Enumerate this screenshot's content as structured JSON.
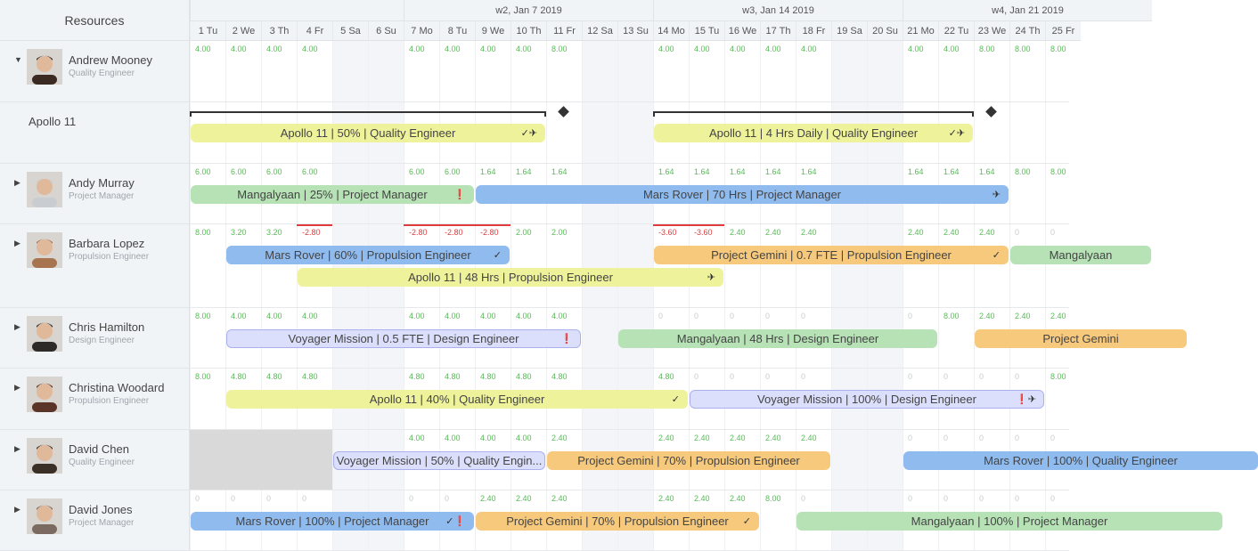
{
  "header": {
    "resources_label": "Resources",
    "weeks": [
      {
        "label": "w2, Jan 7 2019",
        "start": 6
      },
      {
        "label": "w3, Jan 14 2019",
        "start": 13
      },
      {
        "label": "w4, Jan 21 2019",
        "start": 20
      }
    ],
    "days": [
      "1 Tu",
      "2 We",
      "3 Th",
      "4 Fr",
      "5 Sa",
      "6 Su",
      "7 Mo",
      "8 Tu",
      "9 We",
      "10 Th",
      "11 Fr",
      "12 Sa",
      "13 Su",
      "14 Mo",
      "15 Tu",
      "16 We",
      "17 Th",
      "18 Fr",
      "19 Sa",
      "20 Su",
      "21 Mo",
      "22 Tu",
      "23 We",
      "24 Th",
      "25 Fr"
    ],
    "weekend_cols": [
      4,
      5,
      11,
      12,
      18,
      19
    ]
  },
  "colors": {
    "green": "#b6e2b6",
    "blue": "#8fbbef",
    "yellow": "#eef39b",
    "orange": "#f6c97c",
    "lavender": "#dcdffb",
    "positive": "#5cb85c",
    "negative": "#e03c3c"
  },
  "rows": [
    {
      "type": "resource",
      "name": "Andrew Mooney",
      "role": "Quality Engineer",
      "expanded": true,
      "avatar": "#3a2a22",
      "values": [
        "4.00",
        "4.00",
        "4.00",
        "4.00",
        "",
        "",
        "4.00",
        "4.00",
        "4.00",
        "4.00",
        "8.00",
        "",
        "",
        "4.00",
        "4.00",
        "4.00",
        "4.00",
        "4.00",
        "",
        "",
        "4.00",
        "4.00",
        "8.00",
        "8.00",
        "8.00"
      ],
      "bars": []
    },
    {
      "type": "project",
      "name": "Apollo 11",
      "brackets": [
        {
          "start": 0,
          "end": 10,
          "milestone": 10.5
        },
        {
          "start": 13,
          "end": 22,
          "milestone": 22.5
        }
      ],
      "bars": [
        {
          "label": "Apollo 11 | 50% | Quality Engineer",
          "color": "yellow",
          "start": 0,
          "end": 10,
          "lane": 0,
          "icons": "✓✈"
        },
        {
          "label": "Apollo 11 | 4 Hrs Daily | Quality Engineer",
          "color": "yellow",
          "start": 13,
          "end": 22,
          "lane": 0,
          "icons": "✓✈"
        }
      ]
    },
    {
      "type": "resource",
      "name": "Andy Murray",
      "role": "Project Manager",
      "avatar": "#c9ccd0",
      "values": [
        "6.00",
        "6.00",
        "6.00",
        "6.00",
        "",
        "",
        "6.00",
        "6.00",
        "1.64",
        "1.64",
        "1.64",
        "",
        "",
        "1.64",
        "1.64",
        "1.64",
        "1.64",
        "1.64",
        "",
        "",
        "1.64",
        "1.64",
        "1.64",
        "8.00",
        "8.00"
      ],
      "bars": [
        {
          "label": "Mangalyaan | 25% | Project Manager",
          "color": "green",
          "start": 0,
          "end": 8,
          "lane": 0,
          "icons": "❗"
        },
        {
          "label": "Mars Rover | 70 Hrs | Project Manager",
          "color": "blue",
          "start": 8,
          "end": 23,
          "lane": 0,
          "icons": "✈"
        }
      ]
    },
    {
      "type": "resource",
      "name": "Barbara Lopez",
      "role": "Propulsion Engineer",
      "avatar": "#a8734f",
      "values": [
        "8.00",
        "3.20",
        "3.20",
        "-2.80",
        "",
        "",
        "-2.80",
        "-2.80",
        "-2.80",
        "2.00",
        "2.00",
        "",
        "",
        "-3.60",
        "-3.60",
        "2.40",
        "2.40",
        "2.40",
        "",
        "",
        "2.40",
        "2.40",
        "2.40",
        "0",
        "0"
      ],
      "bars": [
        {
          "label": "Mars Rover | 60% | Propulsion Engineer",
          "color": "blue",
          "start": 1,
          "end": 9,
          "lane": 0,
          "icons": "✓"
        },
        {
          "label": "Project Gemini | 0.7 FTE | Propulsion Engineer",
          "color": "orange",
          "start": 13,
          "end": 23,
          "lane": 0,
          "icons": "✓"
        },
        {
          "label": "Mangalyaan",
          "color": "green",
          "start": 23,
          "end": 27,
          "lane": 0,
          "icons": ""
        },
        {
          "label": "Apollo 11 | 48 Hrs | Propulsion Engineer",
          "color": "yellow",
          "start": 3,
          "end": 15,
          "lane": 1,
          "icons": "✈"
        }
      ]
    },
    {
      "type": "resource",
      "name": "Chris Hamilton",
      "role": "Design Engineer",
      "avatar": "#2e2a28",
      "values": [
        "8.00",
        "4.00",
        "4.00",
        "4.00",
        "",
        "",
        "4.00",
        "4.00",
        "4.00",
        "4.00",
        "4.00",
        "",
        "",
        "0",
        "0",
        "0",
        "0",
        "0",
        "",
        "",
        "0",
        "8.00",
        "2.40",
        "2.40",
        "2.40"
      ],
      "bars": [
        {
          "label": "Voyager Mission | 0.5 FTE | Design Engineer",
          "color": "lavender",
          "start": 1,
          "end": 11,
          "lane": 0,
          "icons": "❗"
        },
        {
          "label": "Mangalyaan | 48 Hrs | Design Engineer",
          "color": "green",
          "start": 12,
          "end": 21,
          "lane": 0,
          "icons": ""
        },
        {
          "label": "Project Gemini",
          "color": "orange",
          "start": 22,
          "end": 28,
          "lane": 0,
          "icons": ""
        }
      ]
    },
    {
      "type": "resource",
      "name": "Christina Woodard",
      "role": "Propulsion Engineer",
      "avatar": "#5a3426",
      "values": [
        "8.00",
        "4.80",
        "4.80",
        "4.80",
        "",
        "",
        "4.80",
        "4.80",
        "4.80",
        "4.80",
        "4.80",
        "",
        "",
        "4.80",
        "0",
        "0",
        "0",
        "0",
        "",
        "",
        "0",
        "0",
        "0",
        "0",
        "8.00"
      ],
      "bars": [
        {
          "label": "Apollo 11 | 40% | Quality Engineer",
          "color": "yellow",
          "start": 1,
          "end": 14,
          "lane": 0,
          "icons": "✓"
        },
        {
          "label": "Voyager Mission | 100% | Design Engineer",
          "color": "lavender",
          "start": 14,
          "end": 24,
          "lane": 0,
          "icons": "❗✈"
        }
      ]
    },
    {
      "type": "resource",
      "name": "David Chen",
      "role": "Quality Engineer",
      "avatar": "#3b3026",
      "unavailable": [
        0,
        4
      ],
      "values": [
        "",
        "",
        "",
        "",
        "",
        "",
        "4.00",
        "4.00",
        "4.00",
        "4.00",
        "2.40",
        "",
        "",
        "2.40",
        "2.40",
        "2.40",
        "2.40",
        "2.40",
        "",
        "",
        "0",
        "0",
        "0",
        "0",
        "0"
      ],
      "bars": [
        {
          "label": "Voyager Mission | 50% | Quality Engin...",
          "color": "lavender",
          "start": 4,
          "end": 10,
          "lane": 0,
          "icons": ""
        },
        {
          "label": "Project Gemini | 70% | Propulsion Engineer",
          "color": "orange",
          "start": 10,
          "end": 18,
          "lane": 0,
          "icons": ""
        },
        {
          "label": "Mars Rover | 100% | Quality Engineer",
          "color": "blue",
          "start": 20,
          "end": 30,
          "lane": 0,
          "icons": ""
        }
      ]
    },
    {
      "type": "resource",
      "name": "David Jones",
      "role": "Project Manager",
      "avatar": "#7a6a60",
      "values": [
        "0",
        "0",
        "0",
        "0",
        "",
        "",
        "0",
        "0",
        "2.40",
        "2.40",
        "2.40",
        "",
        "",
        "2.40",
        "2.40",
        "2.40",
        "8.00",
        "0",
        "",
        "",
        "0",
        "0",
        "0",
        "0",
        "0"
      ],
      "bars": [
        {
          "label": "Mars Rover | 100% | Project Manager",
          "color": "blue",
          "start": 0,
          "end": 8,
          "lane": 0,
          "icons": "✓❗"
        },
        {
          "label": "Project Gemini | 70% | Propulsion Engineer",
          "color": "orange",
          "start": 8,
          "end": 16,
          "lane": 0,
          "icons": "✓"
        },
        {
          "label": "Mangalyaan | 100% | Project Manager",
          "color": "green",
          "start": 17,
          "end": 29,
          "lane": 0,
          "icons": ""
        }
      ]
    }
  ]
}
